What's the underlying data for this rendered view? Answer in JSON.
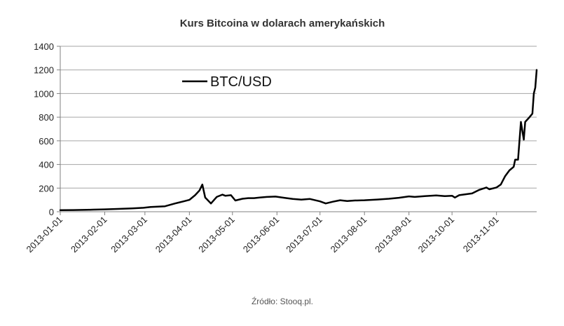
{
  "chart_data": {
    "type": "line",
    "title": "Kurs Bitcoina w dolarach amerykańskich",
    "source_note": "Źródło: Stooq.pl.",
    "xlabel": "",
    "ylabel": "",
    "x_tick_labels": [
      "2013-01-01",
      "2013-02-01",
      "2013-03-01",
      "2013-04-01",
      "2013-05-01",
      "2013-06-01",
      "2013-07-01",
      "2013-08-01",
      "2013-09-01",
      "2013-10-01",
      "2013-11-01"
    ],
    "y_ticks": [
      0,
      200,
      400,
      600,
      800,
      1000,
      1200,
      1400
    ],
    "ylim": [
      0,
      1400
    ],
    "xlim": [
      "2013-01-01",
      "2013-11-29"
    ],
    "grid": "horizontal",
    "legend_position": "top-left",
    "line_color": "#000000",
    "series": [
      {
        "name": "BTC/USD",
        "points": [
          [
            "2013-01-01",
            13
          ],
          [
            "2013-01-10",
            14
          ],
          [
            "2013-01-20",
            16
          ],
          [
            "2013-01-24",
            18
          ],
          [
            "2013-02-01",
            20
          ],
          [
            "2013-02-10",
            24
          ],
          [
            "2013-02-20",
            28
          ],
          [
            "2013-02-28",
            33
          ],
          [
            "2013-03-05",
            40
          ],
          [
            "2013-03-15",
            46
          ],
          [
            "2013-03-22",
            70
          ],
          [
            "2013-03-28",
            88
          ],
          [
            "2013-04-01",
            100
          ],
          [
            "2013-04-05",
            140
          ],
          [
            "2013-04-08",
            180
          ],
          [
            "2013-04-10",
            230
          ],
          [
            "2013-04-12",
            120
          ],
          [
            "2013-04-16",
            70
          ],
          [
            "2013-04-20",
            125
          ],
          [
            "2013-04-24",
            145
          ],
          [
            "2013-04-26",
            135
          ],
          [
            "2013-04-30",
            140
          ],
          [
            "2013-05-03",
            95
          ],
          [
            "2013-05-08",
            110
          ],
          [
            "2013-05-12",
            115
          ],
          [
            "2013-05-16",
            115
          ],
          [
            "2013-05-20",
            120
          ],
          [
            "2013-05-25",
            125
          ],
          [
            "2013-05-31",
            128
          ],
          [
            "2013-06-06",
            118
          ],
          [
            "2013-06-12",
            108
          ],
          [
            "2013-06-18",
            102
          ],
          [
            "2013-06-24",
            108
          ],
          [
            "2013-07-01",
            88
          ],
          [
            "2013-07-05",
            70
          ],
          [
            "2013-07-10",
            85
          ],
          [
            "2013-07-15",
            97
          ],
          [
            "2013-07-20",
            90
          ],
          [
            "2013-07-25",
            95
          ],
          [
            "2013-08-01",
            97
          ],
          [
            "2013-08-10",
            103
          ],
          [
            "2013-08-18",
            110
          ],
          [
            "2013-08-25",
            118
          ],
          [
            "2013-09-01",
            130
          ],
          [
            "2013-09-05",
            125
          ],
          [
            "2013-09-12",
            132
          ],
          [
            "2013-09-20",
            138
          ],
          [
            "2013-09-26",
            132
          ],
          [
            "2013-10-01",
            135
          ],
          [
            "2013-10-03",
            120
          ],
          [
            "2013-10-06",
            140
          ],
          [
            "2013-10-15",
            155
          ],
          [
            "2013-10-20",
            185
          ],
          [
            "2013-10-25",
            205
          ],
          [
            "2013-10-27",
            190
          ],
          [
            "2013-11-01",
            205
          ],
          [
            "2013-11-04",
            230
          ],
          [
            "2013-11-07",
            300
          ],
          [
            "2013-11-10",
            350
          ],
          [
            "2013-11-13",
            380
          ],
          [
            "2013-11-14",
            440
          ],
          [
            "2013-11-16",
            440
          ],
          [
            "2013-11-18",
            760
          ],
          [
            "2013-11-20",
            610
          ],
          [
            "2013-11-21",
            760
          ],
          [
            "2013-11-24",
            800
          ],
          [
            "2013-11-26",
            830
          ],
          [
            "2013-11-27",
            1000
          ],
          [
            "2013-11-28",
            1050
          ],
          [
            "2013-11-29",
            1200
          ]
        ]
      }
    ]
  }
}
